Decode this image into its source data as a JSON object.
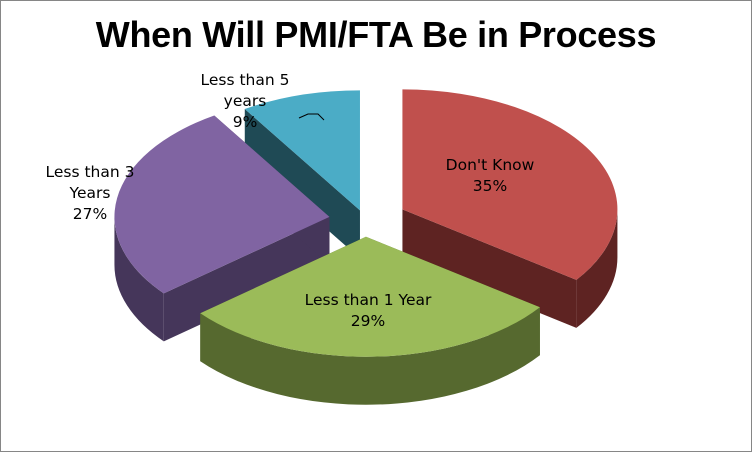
{
  "chart_data": {
    "type": "pie",
    "title": "When Will PMI/FTA Be in Process",
    "three_d": true,
    "exploded": true,
    "slices": [
      {
        "label_lines": [
          "Don't Know"
        ],
        "value_label": "35%",
        "value": 35,
        "color": "#C0504D",
        "side_color": "#5E2322"
      },
      {
        "label_lines": [
          "Less than 1 Year"
        ],
        "value_label": "29%",
        "value": 29,
        "color": "#9BBB59",
        "side_color": "#56692F"
      },
      {
        "label_lines": [
          "Less than 3",
          "Years"
        ],
        "value_label": "27%",
        "value": 27,
        "color": "#8064A2",
        "side_color": "#45365A"
      },
      {
        "label_lines": [
          "Less than 5",
          "years"
        ],
        "value_label": "9%",
        "value": 9,
        "color": "#4BACC6",
        "side_color": "#1F4A55"
      }
    ]
  }
}
